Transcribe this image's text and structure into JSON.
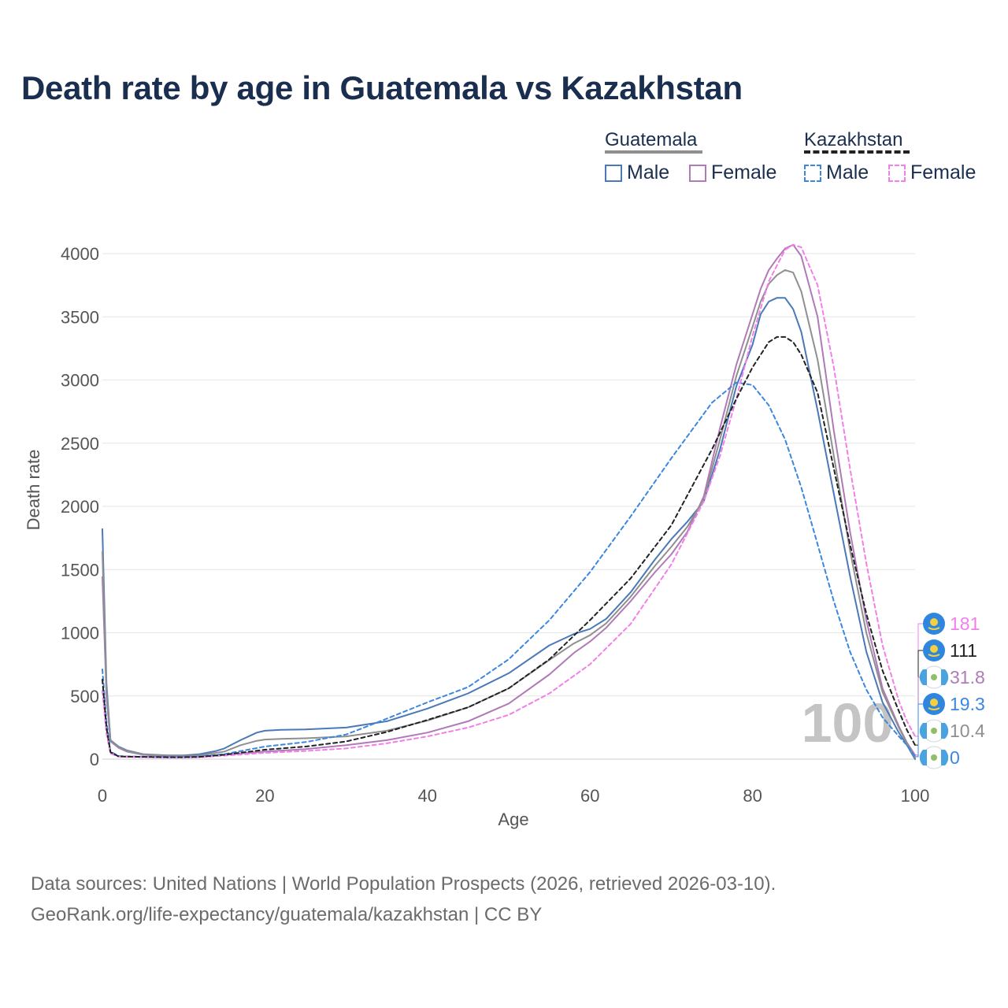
{
  "title": "Death rate by age in Guatemala vs Kazakhstan",
  "legend": {
    "groups": [
      {
        "name": "Guatemala",
        "color": "#8f8f8f",
        "dash": false,
        "items": [
          {
            "label": "Male",
            "color": "#4a78b8"
          },
          {
            "label": "Female",
            "color": "#b07ab8"
          }
        ]
      },
      {
        "name": "Kazakhstan",
        "color": "#222222",
        "dash": true,
        "items": [
          {
            "label": "Male",
            "color": "#3b87e0"
          },
          {
            "label": "Female",
            "color": "#f27fe8"
          }
        ]
      }
    ]
  },
  "watermark": "100",
  "sources": {
    "line1": "Data sources: United Nations | World Population Prospects (2026, retrieved 2026-03-10).",
    "line2": "GeoRank.org/life-expectancy/guatemala/kazakhstan | CC BY"
  },
  "chart_data": {
    "type": "line",
    "title": "Death rate by age in Guatemala vs Kazakhstan",
    "xlabel": "Age",
    "ylabel": "Death rate",
    "xlim": [
      0,
      100
    ],
    "ylim": [
      0,
      4000
    ],
    "xticks": [
      0,
      20,
      40,
      60,
      80,
      100
    ],
    "yticks": [
      0,
      500,
      1000,
      1500,
      2000,
      2500,
      3000,
      3500,
      4000
    ],
    "grid": true,
    "series": [
      {
        "name": "Guatemala Male",
        "country": "Guatemala",
        "sex": "Male",
        "color": "#4a78b8",
        "dash": false,
        "x": [
          0,
          0.5,
          1,
          2,
          3,
          5,
          8,
          10,
          12,
          14,
          15,
          17,
          19,
          20,
          22,
          25,
          30,
          35,
          40,
          45,
          50,
          55,
          58,
          60,
          62,
          65,
          68,
          70,
          72,
          74,
          76,
          78,
          80,
          81,
          82,
          83,
          84,
          85,
          86,
          88,
          90,
          92,
          94,
          96,
          98,
          99,
          100
        ],
        "y": [
          1820,
          600,
          150,
          100,
          70,
          40,
          30,
          30,
          40,
          65,
          85,
          150,
          210,
          225,
          232,
          235,
          250,
          300,
          400,
          520,
          680,
          900,
          990,
          1030,
          1110,
          1320,
          1580,
          1740,
          1880,
          2040,
          2450,
          2950,
          3280,
          3520,
          3620,
          3650,
          3650,
          3560,
          3380,
          2760,
          2100,
          1450,
          850,
          450,
          210,
          110,
          0
        ],
        "end_label": "0"
      },
      {
        "name": "Guatemala Female",
        "country": "Guatemala",
        "sex": "Female",
        "color": "#b07ab8",
        "dash": false,
        "x": [
          0,
          0.5,
          1,
          2,
          3,
          5,
          8,
          10,
          12,
          15,
          20,
          25,
          30,
          35,
          40,
          45,
          50,
          55,
          58,
          60,
          62,
          65,
          68,
          70,
          72,
          74,
          76,
          78,
          80,
          81,
          82,
          83,
          84,
          85,
          86,
          88,
          90,
          92,
          94,
          96,
          98,
          99,
          100
        ],
        "y": [
          1440,
          500,
          140,
          90,
          60,
          35,
          22,
          20,
          22,
          35,
          60,
          80,
          110,
          150,
          210,
          300,
          440,
          670,
          840,
          930,
          1040,
          1250,
          1480,
          1620,
          1800,
          2080,
          2620,
          3120,
          3520,
          3720,
          3870,
          3960,
          4040,
          4070,
          3980,
          3500,
          2600,
          1800,
          1100,
          560,
          260,
          130,
          31.8
        ],
        "end_label": "31.8"
      },
      {
        "name": "Guatemala Total",
        "country": "Guatemala",
        "sex": "Total",
        "color": "#8f8f8f",
        "dash": false,
        "x": [
          0,
          0.5,
          1,
          2,
          3,
          5,
          8,
          10,
          12,
          14,
          15,
          17,
          19,
          20,
          22,
          25,
          30,
          35,
          40,
          45,
          50,
          55,
          58,
          60,
          62,
          65,
          68,
          70,
          72,
          74,
          76,
          78,
          80,
          81,
          82,
          83,
          84,
          85,
          86,
          88,
          90,
          92,
          94,
          96,
          98,
          99,
          100
        ],
        "y": [
          1640,
          550,
          145,
          95,
          65,
          38,
          26,
          25,
          31,
          50,
          60,
          110,
          145,
          155,
          160,
          165,
          180,
          225,
          305,
          410,
          560,
          785,
          915,
          980,
          1075,
          1285,
          1530,
          1680,
          1840,
          2060,
          2530,
          3030,
          3420,
          3620,
          3760,
          3830,
          3870,
          3850,
          3700,
          3160,
          2400,
          1650,
          1000,
          530,
          250,
          125,
          10.4
        ],
        "end_label": "10.4"
      },
      {
        "name": "Kazakhstan Male",
        "country": "Kazakhstan",
        "sex": "Male",
        "color": "#3b87e0",
        "dash": true,
        "x": [
          0,
          0.5,
          1,
          2,
          3,
          5,
          8,
          10,
          12,
          15,
          20,
          25,
          30,
          35,
          40,
          45,
          50,
          55,
          60,
          65,
          70,
          75,
          78,
          80,
          82,
          84,
          86,
          88,
          90,
          92,
          94,
          96,
          98,
          99,
          100
        ],
        "y": [
          710,
          300,
          60,
          25,
          22,
          20,
          18,
          18,
          22,
          40,
          100,
          135,
          195,
          320,
          450,
          570,
          790,
          1100,
          1480,
          1920,
          2380,
          2820,
          2980,
          2960,
          2800,
          2530,
          2150,
          1700,
          1250,
          850,
          550,
          330,
          180,
          110,
          19.3
        ],
        "end_label": "19.3"
      },
      {
        "name": "Kazakhstan Female",
        "country": "Kazakhstan",
        "sex": "Female",
        "color": "#f27fe8",
        "dash": true,
        "x": [
          0,
          0.5,
          1,
          2,
          3,
          5,
          8,
          10,
          12,
          15,
          20,
          25,
          30,
          35,
          40,
          45,
          50,
          55,
          60,
          65,
          70,
          74,
          76,
          78,
          80,
          82,
          84,
          85,
          86,
          88,
          90,
          92,
          94,
          96,
          98,
          99,
          100
        ],
        "y": [
          540,
          200,
          45,
          20,
          18,
          15,
          12,
          12,
          15,
          28,
          50,
          65,
          85,
          125,
          180,
          250,
          350,
          520,
          750,
          1070,
          1540,
          2040,
          2400,
          2850,
          3350,
          3780,
          4030,
          4070,
          4050,
          3750,
          3100,
          2300,
          1550,
          900,
          460,
          300,
          181
        ],
        "end_label": "181"
      },
      {
        "name": "Kazakhstan Total",
        "country": "Kazakhstan",
        "sex": "Total",
        "color": "#222222",
        "dash": true,
        "x": [
          0,
          0.5,
          1,
          2,
          3,
          5,
          8,
          10,
          12,
          15,
          20,
          25,
          30,
          35,
          40,
          45,
          50,
          55,
          60,
          65,
          70,
          75,
          78,
          80,
          82,
          83,
          84,
          85,
          86,
          88,
          90,
          92,
          94,
          96,
          98,
          99,
          100
        ],
        "y": [
          630,
          250,
          55,
          22,
          20,
          18,
          15,
          15,
          18,
          35,
          75,
          100,
          140,
          215,
          310,
          410,
          560,
          790,
          1100,
          1430,
          1850,
          2450,
          2850,
          3100,
          3300,
          3340,
          3340,
          3300,
          3200,
          2900,
          2300,
          1700,
          1150,
          700,
          380,
          230,
          111
        ],
        "end_label": "111"
      }
    ],
    "end_labels": [
      {
        "text": "181",
        "country": "Kazakhstan",
        "color": "#f27fe8"
      },
      {
        "text": "111",
        "country": "Kazakhstan",
        "color": "#222222"
      },
      {
        "text": "31.8",
        "country": "Guatemala",
        "color": "#b07ab8"
      },
      {
        "text": "19.3",
        "country": "Kazakhstan",
        "color": "#3b87e0"
      },
      {
        "text": "10.4",
        "country": "Guatemala",
        "color": "#8f8f8f"
      },
      {
        "text": "0",
        "country": "Guatemala",
        "color": "#3b87e0"
      }
    ]
  }
}
